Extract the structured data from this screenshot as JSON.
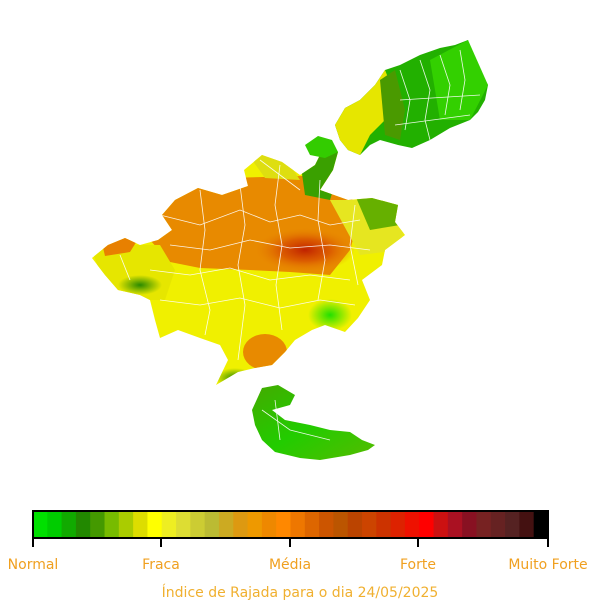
{
  "legend": {
    "ticks": [
      "Normal",
      "Fraca",
      "Média",
      "Forte",
      "Muito Forte"
    ],
    "colors": [
      "#00e000",
      "#00cc00",
      "#11aa00",
      "#228800",
      "#449900",
      "#77bb00",
      "#aacc00",
      "#dddd00",
      "#ffff00",
      "#eeee22",
      "#dddd33",
      "#cccc33",
      "#bbbb33",
      "#ccaa22",
      "#dd9911",
      "#ee9900",
      "#ee8800",
      "#ff8800",
      "#ee7700",
      "#dd6600",
      "#cc5500",
      "#bb5500",
      "#bb4400",
      "#cc4400",
      "#cc3300",
      "#dd2200",
      "#ee1100",
      "#ff0000",
      "#cc1111",
      "#aa1122",
      "#881122",
      "#772222",
      "#662222",
      "#552222",
      "#441111",
      "#000000"
    ]
  },
  "caption": "Índice de Rajada para o dia 24/05/2025"
}
